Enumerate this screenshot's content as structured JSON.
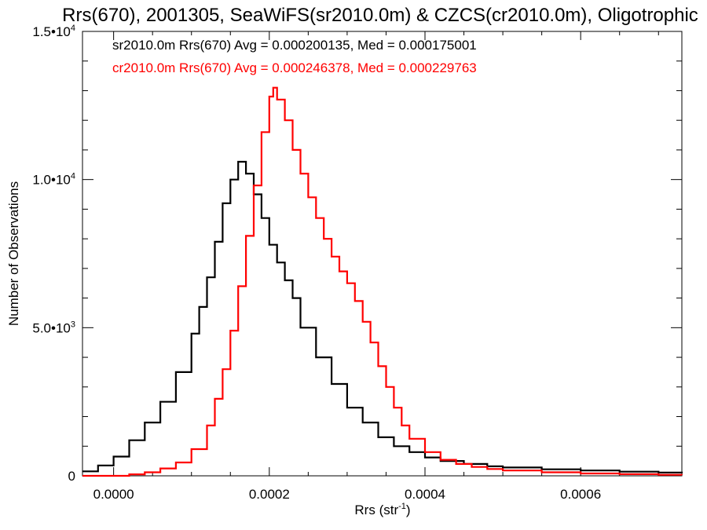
{
  "chart_data": {
    "type": "line",
    "title": "Rrs(670), 2001305, SeaWiFS(sr2010.0m) & CZCS(cr2010.0m), Oligotrophic",
    "xlabel": {
      "base": "Rrs (str",
      "sup": "-1",
      "tail": ")"
    },
    "ylabel": "Number of Observations",
    "xlim": [
      -4e-05,
      0.00073
    ],
    "ylim": [
      0,
      15000
    ],
    "x_ticks": [
      {
        "value": 0.0,
        "label": "0.0000"
      },
      {
        "value": 0.0002,
        "label": "0.0002"
      },
      {
        "value": 0.0004,
        "label": "0.0004"
      },
      {
        "value": 0.0006,
        "label": "0.0006"
      }
    ],
    "y_ticks": [
      {
        "value": 0,
        "base": "0",
        "exp": ""
      },
      {
        "value": 5000,
        "base": "5.0•10",
        "exp": "3"
      },
      {
        "value": 10000,
        "base": "1.0•10",
        "exp": "4"
      },
      {
        "value": 15000,
        "base": "1.5•10",
        "exp": "4"
      }
    ],
    "series": [
      {
        "name": "sr2010.0m Rrs(670) Avg = 0.000200135, Med = 0.000175001",
        "color": "#000000",
        "points": [
          [
            -4e-05,
            150
          ],
          [
            -2e-05,
            350
          ],
          [
            0.0,
            650
          ],
          [
            2e-05,
            1200
          ],
          [
            4e-05,
            1800
          ],
          [
            6e-05,
            2500
          ],
          [
            8e-05,
            3500
          ],
          [
            0.0001,
            4800
          ],
          [
            0.00011,
            5700
          ],
          [
            0.00012,
            6700
          ],
          [
            0.00013,
            7900
          ],
          [
            0.00014,
            9200
          ],
          [
            0.00015,
            10000
          ],
          [
            0.00016,
            10600
          ],
          [
            0.00017,
            10200
          ],
          [
            0.00018,
            9500
          ],
          [
            0.00019,
            8700
          ],
          [
            0.0002,
            7800
          ],
          [
            0.00021,
            7200
          ],
          [
            0.00022,
            6600
          ],
          [
            0.00023,
            6000
          ],
          [
            0.00024,
            5000
          ],
          [
            0.00026,
            4000
          ],
          [
            0.00028,
            3100
          ],
          [
            0.0003,
            2300
          ],
          [
            0.00032,
            1800
          ],
          [
            0.00034,
            1300
          ],
          [
            0.00036,
            1000
          ],
          [
            0.00038,
            800
          ],
          [
            0.0004,
            620
          ],
          [
            0.00042,
            500
          ],
          [
            0.00045,
            400
          ],
          [
            0.00048,
            320
          ],
          [
            0.0005,
            280
          ],
          [
            0.00055,
            220
          ],
          [
            0.0006,
            180
          ],
          [
            0.00065,
            140
          ],
          [
            0.0007,
            110
          ],
          [
            0.00073,
            90
          ]
        ]
      },
      {
        "name": "cr2010.0m Rrs(670) Avg = 0.000246378, Med = 0.000229763",
        "color": "#ff0000",
        "points": [
          [
            -4e-05,
            0
          ],
          [
            0.0,
            0
          ],
          [
            2e-05,
            50
          ],
          [
            4e-05,
            120
          ],
          [
            6e-05,
            250
          ],
          [
            8e-05,
            450
          ],
          [
            0.0001,
            900
          ],
          [
            0.00012,
            1700
          ],
          [
            0.00013,
            2600
          ],
          [
            0.00014,
            3600
          ],
          [
            0.00015,
            4900
          ],
          [
            0.00016,
            6400
          ],
          [
            0.00017,
            8100
          ],
          [
            0.00018,
            9800
          ],
          [
            0.00019,
            11600
          ],
          [
            0.0002,
            12800
          ],
          [
            0.000205,
            13100
          ],
          [
            0.00021,
            12700
          ],
          [
            0.00022,
            12000
          ],
          [
            0.00023,
            11000
          ],
          [
            0.00024,
            10200
          ],
          [
            0.00025,
            9400
          ],
          [
            0.00026,
            8700
          ],
          [
            0.00027,
            8000
          ],
          [
            0.00028,
            7400
          ],
          [
            0.00029,
            6900
          ],
          [
            0.0003,
            6500
          ],
          [
            0.00031,
            5900
          ],
          [
            0.00032,
            5200
          ],
          [
            0.00033,
            4500
          ],
          [
            0.00034,
            3700
          ],
          [
            0.00035,
            3000
          ],
          [
            0.00036,
            2300
          ],
          [
            0.00037,
            1700
          ],
          [
            0.00038,
            1250
          ],
          [
            0.0004,
            800
          ],
          [
            0.00042,
            540
          ],
          [
            0.00044,
            400
          ],
          [
            0.00046,
            300
          ],
          [
            0.00048,
            230
          ],
          [
            0.0005,
            180
          ],
          [
            0.00055,
            120
          ],
          [
            0.0006,
            80
          ],
          [
            0.00065,
            55
          ],
          [
            0.0007,
            35
          ],
          [
            0.00073,
            30
          ]
        ]
      }
    ]
  }
}
